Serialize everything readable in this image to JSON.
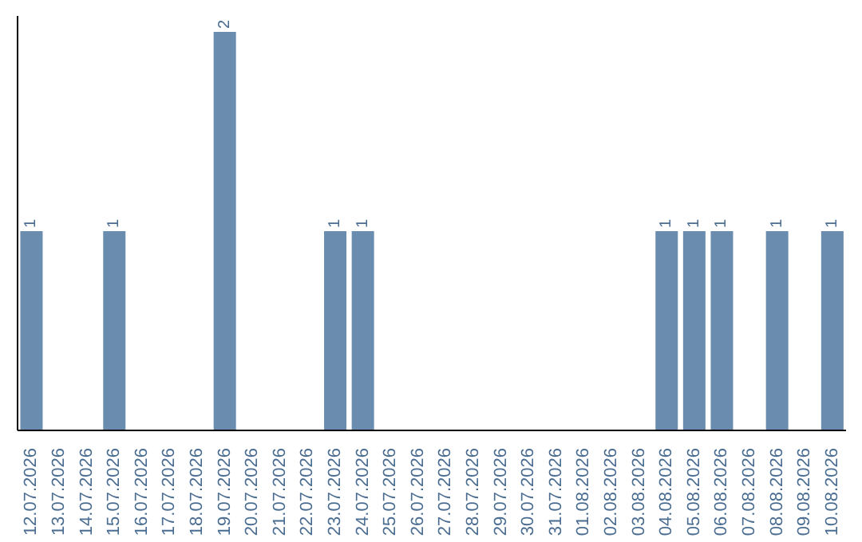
{
  "chart_data": {
    "type": "bar",
    "categories": [
      "12.07.2026",
      "13.07.2026",
      "14.07.2026",
      "15.07.2026",
      "16.07.2026",
      "17.07.2026",
      "18.07.2026",
      "19.07.2026",
      "20.07.2026",
      "21.07.2026",
      "22.07.2026",
      "23.07.2026",
      "24.07.2026",
      "25.07.2026",
      "26.07.2026",
      "27.07.2026",
      "28.07.2026",
      "29.07.2026",
      "30.07.2026",
      "31.07.2026",
      "01.08.2026",
      "02.08.2026",
      "03.08.2026",
      "04.08.2026",
      "05.08.2026",
      "06.08.2026",
      "07.08.2026",
      "08.08.2026",
      "09.08.2026",
      "10.08.2026"
    ],
    "values": [
      1,
      0,
      0,
      1,
      0,
      0,
      0,
      2,
      0,
      0,
      0,
      1,
      1,
      0,
      0,
      0,
      0,
      0,
      0,
      0,
      0,
      0,
      0,
      1,
      1,
      1,
      0,
      1,
      0,
      1
    ],
    "value_labels": [
      "1",
      null,
      null,
      "1",
      null,
      null,
      null,
      "2",
      null,
      null,
      null,
      "1",
      "1",
      null,
      null,
      null,
      null,
      null,
      null,
      null,
      null,
      null,
      null,
      "1",
      "1",
      "1",
      null,
      "1",
      null,
      "1"
    ],
    "color": "#6a8caf",
    "relative": false,
    "tick_labels": "x",
    "grid": false,
    "legend": false
  }
}
